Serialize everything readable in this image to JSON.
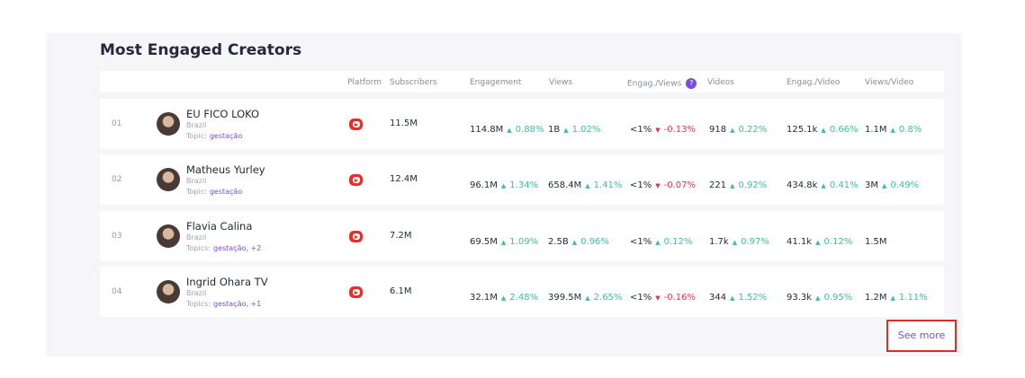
{
  "title": "Most Engaged Creators",
  "columns": [
    "Platform",
    "Subscribers",
    "Engagement",
    "Views",
    "Engag./Views",
    "Videos",
    "Engag./Video",
    "Views/Video"
  ],
  "rows": [
    {
      "rank": "01",
      "name": "EU FICO LOKO",
      "country": "Brazil",
      "topic_label": "Topic:",
      "topics": "gestação",
      "subscribers": "11.5M",
      "metrics": [
        {
          "value": "114.8M",
          "change": "0.88%"
        },
        {
          "value": "1B",
          "change": "1.02%"
        },
        {
          "value": "<1%",
          "change": "-0.13%"
        },
        {
          "value": "918",
          "change": "0.22%"
        },
        {
          "value": "125.1k",
          "change": "0.66%"
        },
        {
          "value": "1.1M",
          "change": "0.8%"
        }
      ]
    },
    {
      "rank": "02",
      "name": "Matheus Yurley",
      "country": "Brazil",
      "topic_label": "Topic:",
      "topics": "gestação",
      "subscribers": "12.4M",
      "metrics": [
        {
          "value": "96.1M",
          "change": "1.34%"
        },
        {
          "value": "658.4M",
          "change": "1.41%"
        },
        {
          "value": "<1%",
          "change": "-0.07%"
        },
        {
          "value": "221",
          "change": "0.92%"
        },
        {
          "value": "434.8k",
          "change": "0.41%"
        },
        {
          "value": "3M",
          "change": "0.49%"
        }
      ]
    },
    {
      "rank": "03",
      "name": "Flavia Calina",
      "country": "Brazil",
      "topic_label": "Topics:",
      "topics": "gestação, +2",
      "subscribers": "7.2M",
      "metrics": [
        {
          "value": "69.5M",
          "change": "1.09%"
        },
        {
          "value": "2.5B",
          "change": "0.96%"
        },
        {
          "value": "<1%",
          "change": "0.12%"
        },
        {
          "value": "1.7k",
          "change": "0.97%"
        },
        {
          "value": "41.1k",
          "change": "0.12%"
        },
        {
          "value": "1.5M"
        }
      ]
    },
    {
      "rank": "04",
      "name": "Ingrid Ohara TV",
      "country": "Brazil",
      "topic_label": "Topics:",
      "topics": "gestação, +1",
      "subscribers": "6.1M",
      "metrics": [
        {
          "value": "32.1M",
          "change": "2.48%"
        },
        {
          "value": "399.5M",
          "change": "2.65%"
        },
        {
          "value": "<1%",
          "change": "-0.16%"
        },
        {
          "value": "344",
          "change": "1.52%"
        },
        {
          "value": "93.3k",
          "change": "0.95%"
        },
        {
          "value": "1.2M",
          "change": "1.11%"
        }
      ]
    }
  ],
  "button": "See more"
}
